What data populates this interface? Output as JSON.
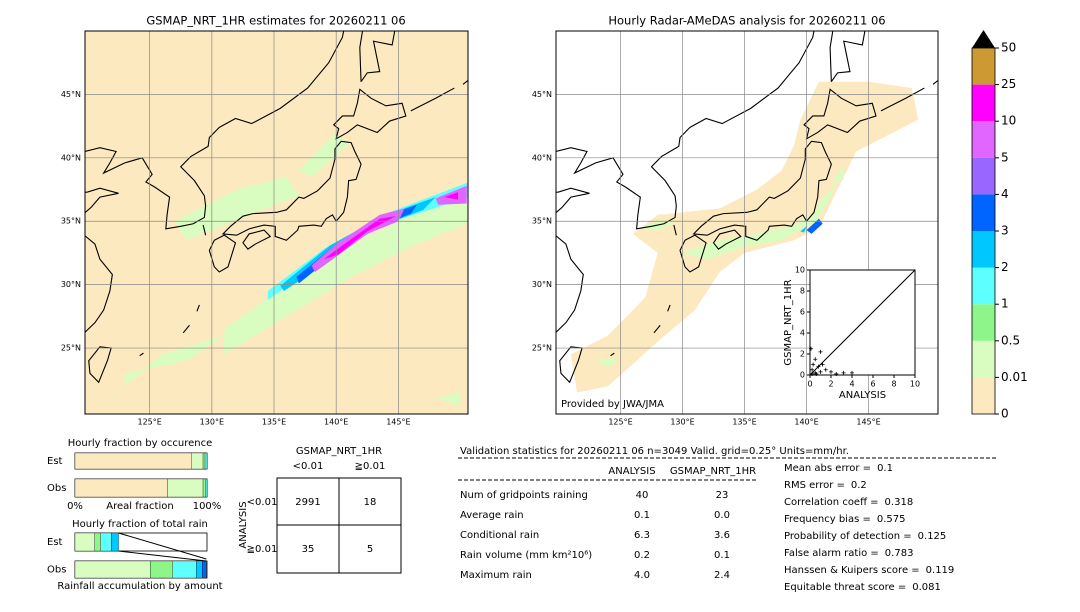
{
  "left_map": {
    "title": "GSMAP_NRT_1HR estimates for 20260211 06",
    "xlim": [
      119.8,
      150.6
    ],
    "ylim": [
      19.8,
      50
    ],
    "xticks": [
      {
        "value": 125,
        "label": "125°E"
      },
      {
        "value": 130,
        "label": "130°E"
      },
      {
        "value": 135,
        "label": "135°E"
      },
      {
        "value": 140,
        "label": "140°E"
      },
      {
        "value": 145,
        "label": "145°E"
      }
    ],
    "yticks": [
      {
        "value": 25,
        "label": "25°N"
      },
      {
        "value": 30,
        "label": "30°N"
      },
      {
        "value": 35,
        "label": "35°N"
      },
      {
        "value": 40,
        "label": "40°N"
      },
      {
        "value": 45,
        "label": "45°N"
      }
    ]
  },
  "right_map": {
    "title": "Hourly Radar-AMeDAS analysis for 20260211 06",
    "credit": "Provided by JWA/JMA",
    "xlim": [
      119.8,
      150.6
    ],
    "ylim": [
      19.8,
      50
    ],
    "xticks": [
      {
        "value": 125,
        "label": "125°E"
      },
      {
        "value": 130,
        "label": "130°E"
      },
      {
        "value": 135,
        "label": "135°E"
      },
      {
        "value": 140,
        "label": "140°E"
      },
      {
        "value": 145,
        "label": "145°E"
      }
    ],
    "yticks": [
      {
        "value": 25,
        "label": "25°N"
      },
      {
        "value": 30,
        "label": "30°N"
      },
      {
        "value": 35,
        "label": "35°N"
      },
      {
        "value": 40,
        "label": "40°N"
      },
      {
        "value": 45,
        "label": "45°N"
      }
    ]
  },
  "colorbar": {
    "levels": [
      0,
      0.01,
      0.5,
      1,
      2,
      3,
      4,
      5,
      10,
      25,
      50
    ],
    "colors": [
      "#fde9c0",
      "#d9fcc0",
      "#8ef58a",
      "#5effff",
      "#00c8ff",
      "#0064ff",
      "#9966ff",
      "#e066ff",
      "#ff00ff",
      "#cc9933"
    ],
    "extend_color": "#000000"
  },
  "scatter": {
    "type": "scatter",
    "xlabel": "ANALYSIS",
    "ylabel": "GSMAP_NRT_1HR",
    "xlim": [
      0,
      10
    ],
    "ylim": [
      0,
      10
    ],
    "xticks": [
      0,
      2,
      4,
      6,
      8,
      10
    ],
    "yticks": [
      0,
      2,
      4,
      6,
      8,
      10
    ],
    "x": [
      0,
      0.2,
      0.5,
      1,
      0.3,
      0.5,
      1,
      2,
      1.5,
      2.5,
      0.1,
      0.8,
      3.2,
      1.2,
      0.2,
      0.6,
      4
    ],
    "y": [
      0,
      0.5,
      0.2,
      0.3,
      1,
      1.5,
      2.2,
      0.3,
      0.5,
      0.1,
      2.5,
      0.8,
      0.2,
      1,
      0.1,
      0.1,
      0.2
    ]
  },
  "occurrence": {
    "type": "bar",
    "title": "Hourly fraction by occurence",
    "categories": [
      "Est",
      "Obs"
    ],
    "xlabel": "Areal fraction",
    "xlim": [
      0,
      100
    ],
    "xticks": [
      {
        "value": 0,
        "label": "0%"
      },
      {
        "value": 100,
        "label": "100%"
      }
    ],
    "series": [
      {
        "color": "#fde9c0",
        "values": [
          88,
          70
        ]
      },
      {
        "color": "#d9fcc0",
        "values": [
          9,
          27
        ]
      },
      {
        "color": "#8ef58a",
        "values": [
          1.5,
          2
        ]
      },
      {
        "color": "#5effff",
        "values": [
          1.5,
          1
        ]
      }
    ]
  },
  "total_rain": {
    "type": "bar",
    "title": "Hourly fraction of total rain",
    "categories": [
      "Est",
      "Obs"
    ],
    "xlabel": "Rainfall accumulation by amount",
    "xlim": [
      0,
      100
    ],
    "series": [
      {
        "color": "#d9fcc0",
        "values": [
          15,
          57
        ]
      },
      {
        "color": "#8ef58a",
        "values": [
          4.5,
          17
        ]
      },
      {
        "color": "#5effff",
        "values": [
          8,
          18
        ]
      },
      {
        "color": "#00c8ff",
        "values": [
          5.5,
          4.5
        ]
      },
      {
        "color": "#0064ff",
        "values": [
          0,
          3
        ]
      }
    ]
  },
  "contingency": {
    "title": "GSMAP_NRT_1HR",
    "col_labels": [
      "<0.01",
      "≧0.01"
    ],
    "row_title": "ANALYSIS",
    "row_labels": [
      "<0.01",
      "≧0.01"
    ],
    "cells": [
      [
        "2991",
        "18"
      ],
      [
        "35",
        "5"
      ]
    ]
  },
  "stats": {
    "title": "Validation statistics for 20260211 06  n=3049 Valid. grid=0.25° Units=mm/hr.",
    "columns": [
      "ANALYSIS",
      "GSMAP_NRT_1HR"
    ],
    "rows": [
      {
        "label": "Num of gridpoints raining",
        "values": [
          "40",
          "23"
        ]
      },
      {
        "label": "Average rain",
        "values": [
          "0.1",
          "0.0"
        ]
      },
      {
        "label": "Conditional rain",
        "values": [
          "6.3",
          "3.6"
        ]
      },
      {
        "label": "Rain volume (mm km²10⁶)",
        "values": [
          "0.2",
          "0.1"
        ]
      },
      {
        "label": "Maximum rain",
        "values": [
          "4.0",
          "2.4"
        ]
      }
    ],
    "scores": [
      {
        "label": "Mean abs error =",
        "value": "0.1"
      },
      {
        "label": "RMS error =",
        "value": "0.2"
      },
      {
        "label": "Correlation coeff =",
        "value": "0.318"
      },
      {
        "label": "Frequency bias =",
        "value": "0.575"
      },
      {
        "label": "Probability of detection =",
        "value": "0.125"
      },
      {
        "label": "False alarm ratio =",
        "value": "0.783"
      },
      {
        "label": "Hanssen & Kuipers score =",
        "value": "0.119"
      },
      {
        "label": "Equitable threat score =",
        "value": "0.081"
      }
    ]
  }
}
